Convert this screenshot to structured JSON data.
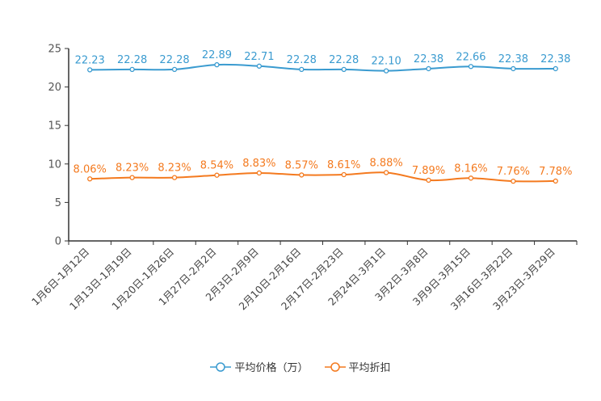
{
  "chart_data": {
    "type": "line",
    "categories": [
      "1月6日-1月12日",
      "1月13日-1月19日",
      "1月20日-1月26日",
      "1月27日-2月2日",
      "2月3日-2月9日",
      "2月10日-2月16日",
      "2月17日-2月23日",
      "2月24日-3月1日",
      "3月2日-3月8日",
      "3月9日-3月15日",
      "3月16日-3月22日",
      "3月23日-3月29日"
    ],
    "series": [
      {
        "name": "平均价格（万）",
        "color": "#3a9bd0",
        "values": [
          22.23,
          22.28,
          22.28,
          22.89,
          22.71,
          22.28,
          22.28,
          22.1,
          22.38,
          22.66,
          22.38,
          22.38
        ],
        "labels": [
          "22.23",
          "22.28",
          "22.28",
          "22.89",
          "22.71",
          "22.28",
          "22.28",
          "22.10",
          "22.38",
          "22.66",
          "22.38",
          "22.38"
        ]
      },
      {
        "name": "平均折扣",
        "color": "#f47a1f",
        "values": [
          8.06,
          8.23,
          8.23,
          8.54,
          8.83,
          8.57,
          8.61,
          8.88,
          7.89,
          8.16,
          7.76,
          7.78
        ],
        "labels": [
          "8.06%",
          "8.23%",
          "8.23%",
          "8.54%",
          "8.83%",
          "8.57%",
          "8.61%",
          "8.88%",
          "7.89%",
          "8.16%",
          "7.76%",
          "7.78%"
        ]
      }
    ],
    "ylim": [
      0,
      25
    ],
    "yticks": [
      0,
      5,
      10,
      15,
      20,
      25
    ],
    "title": "",
    "xlabel": "",
    "ylabel": "",
    "legend_position": "bottom-center"
  }
}
